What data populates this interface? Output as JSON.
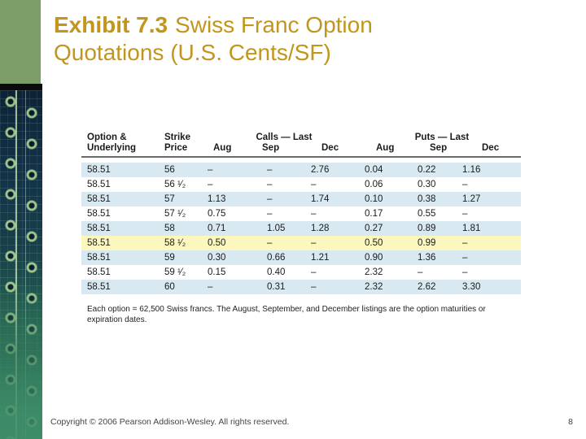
{
  "slide": {
    "title_bold": "Exhibit 7.3",
    "title_rest": "Swiss Franc Option Quotations (U.S. Cents/SF)",
    "page_number": "8",
    "copyright": "Copyright © 2006 Pearson Addison-Wesley. All rights reserved.",
    "accent_colors": {
      "title_gold": "#C2951D",
      "sidebar_green": "#7C9D68",
      "row_blue": "#D8E9F2",
      "row_highlight_yellow": "#FCF7BE"
    }
  },
  "table": {
    "header": {
      "option_underlying_line1": "Option &",
      "option_underlying_line2": "Underlying",
      "strike_line1": "Strike",
      "strike_line2": "Price",
      "calls_group_label": "Calls — Last",
      "puts_group_label": "Puts — Last",
      "calls_months": [
        "Aug",
        "Sep",
        "Dec"
      ],
      "puts_months": [
        "Aug",
        "Sep",
        "Dec"
      ]
    },
    "rows": [
      {
        "highlight": "blue",
        "cells": [
          "58.51",
          "56",
          "–",
          "–",
          "2.76",
          "0.04",
          "0.22",
          "1.16"
        ]
      },
      {
        "highlight": "white",
        "cells": [
          "58.51",
          "56 ¹⁄₂",
          "–",
          "–",
          "–",
          "0.06",
          "0.30",
          "–"
        ]
      },
      {
        "highlight": "blue",
        "cells": [
          "58.51",
          "57",
          "1.13",
          "–",
          "1.74",
          "0.10",
          "0.38",
          "1.27"
        ]
      },
      {
        "highlight": "white",
        "cells": [
          "58.51",
          "57 ¹⁄₂",
          "0.75",
          "–",
          "–",
          "0.17",
          "0.55",
          "–"
        ]
      },
      {
        "highlight": "blue",
        "cells": [
          "58.51",
          "58",
          "0.71",
          "1.05",
          "1.28",
          "0.27",
          "0.89",
          "1.81"
        ]
      },
      {
        "highlight": "yellow",
        "cells": [
          "58.51",
          "58 ¹⁄₂",
          "0.50",
          "–",
          "–",
          "0.50",
          "0.99",
          "–"
        ]
      },
      {
        "highlight": "blue",
        "cells": [
          "58.51",
          "59",
          "0.30",
          "0.66",
          "1.21",
          "0.90",
          "1.36",
          "–"
        ]
      },
      {
        "highlight": "white",
        "cells": [
          "58.51",
          "59 ¹⁄₂",
          "0.15",
          "0.40",
          "–",
          "2.32",
          "–",
          "–"
        ]
      },
      {
        "highlight": "blue",
        "cells": [
          "58.51",
          "60",
          "–",
          "0.31",
          "–",
          "2.32",
          "2.62",
          "3.30"
        ]
      }
    ],
    "footnote": "Each option = 62,500 Swiss francs. The August, September, and December listings are the option maturities or expiration dates."
  }
}
